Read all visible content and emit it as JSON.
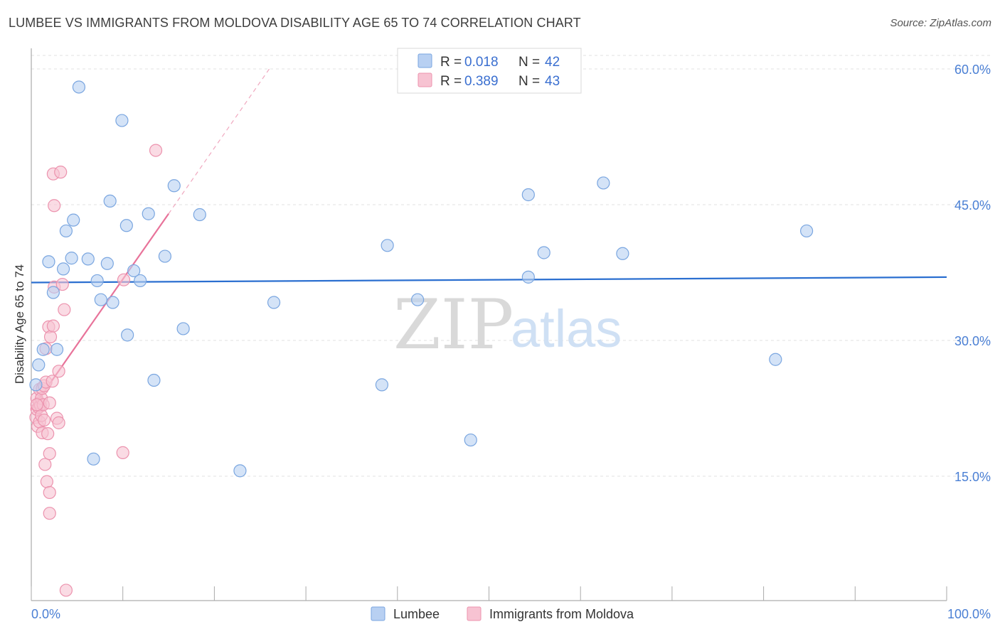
{
  "header": {
    "title": "LUMBEE VS IMMIGRANTS FROM MOLDOVA DISABILITY AGE 65 TO 74 CORRELATION CHART",
    "source": "Source: ZipAtlas.com"
  },
  "watermark": {
    "zip": "ZIP",
    "atlas": "atlas"
  },
  "legend_top": {
    "rows": [
      {
        "r_label": "R =",
        "r_value": "0.018",
        "n_label": "N =",
        "n_value": "42"
      },
      {
        "r_label": "R =",
        "r_value": "0.389",
        "n_label": "N =",
        "n_value": "43"
      }
    ]
  },
  "colors": {
    "lumbee_fill": "#b8d0f2",
    "lumbee_stroke": "#7aa6e0",
    "lumbee_line": "#2b6fd0",
    "moldova_fill": "#f7c3d2",
    "moldova_stroke": "#ec93ae",
    "moldova_line": "#e8739a",
    "tick_text": "#4a7fd4",
    "grid": "#e2e2e2"
  },
  "chart_data": {
    "type": "scatter",
    "title": "LUMBEE VS IMMIGRANTS FROM MOLDOVA DISABILITY AGE 65 TO 74 CORRELATION CHART",
    "xlabel": "",
    "ylabel": "Disability Age 65 to 74",
    "xlim": [
      0,
      100
    ],
    "ylim": [
      0,
      63
    ],
    "x_tick_labels": [
      "0.0%",
      "100.0%"
    ],
    "y_ticks": [
      15,
      30,
      45,
      60
    ],
    "y_tick_labels": [
      "15.0%",
      "30.0%",
      "45.0%",
      "60.0%"
    ],
    "grid": true,
    "legend_position": "top-center",
    "series": [
      {
        "name": "Lumbee",
        "r": 0.018,
        "n": 42,
        "trend": {
          "x": [
            0,
            100
          ],
          "y": [
            36.4,
            37.0
          ],
          "dashed_extension": false
        },
        "points": [
          [
            0.5,
            25.1
          ],
          [
            0.8,
            27.3
          ],
          [
            1.3,
            29.0
          ],
          [
            1.9,
            38.7
          ],
          [
            2.4,
            35.3
          ],
          [
            2.8,
            29.0
          ],
          [
            3.5,
            37.9
          ],
          [
            3.8,
            42.1
          ],
          [
            4.4,
            39.1
          ],
          [
            4.6,
            43.3
          ],
          [
            5.2,
            58.0
          ],
          [
            6.2,
            39.0
          ],
          [
            6.8,
            16.9
          ],
          [
            7.2,
            36.6
          ],
          [
            7.6,
            34.5
          ],
          [
            8.3,
            38.5
          ],
          [
            8.6,
            45.4
          ],
          [
            8.9,
            34.2
          ],
          [
            9.9,
            54.3
          ],
          [
            10.4,
            42.7
          ],
          [
            10.5,
            30.6
          ],
          [
            11.2,
            37.7
          ],
          [
            11.9,
            36.6
          ],
          [
            12.8,
            44.0
          ],
          [
            13.4,
            25.6
          ],
          [
            14.6,
            39.3
          ],
          [
            15.6,
            47.1
          ],
          [
            16.6,
            31.3
          ],
          [
            18.4,
            43.9
          ],
          [
            22.8,
            15.6
          ],
          [
            26.5,
            34.2
          ],
          [
            38.3,
            25.1
          ],
          [
            38.9,
            40.5
          ],
          [
            42.2,
            34.5
          ],
          [
            48.0,
            19.0
          ],
          [
            54.3,
            46.1
          ],
          [
            54.3,
            37.0
          ],
          [
            56.0,
            39.7
          ],
          [
            62.5,
            47.4
          ],
          [
            64.6,
            39.6
          ],
          [
            81.3,
            27.9
          ],
          [
            84.7,
            42.1
          ]
        ]
      },
      {
        "name": "Immigrants from Moldova",
        "r": 0.389,
        "n": 43,
        "trend": {
          "x": [
            0,
            15
          ],
          "y": [
            22.3,
            44.0
          ],
          "dashed_extension": {
            "x": [
              15,
              26
            ],
            "y": [
              44.0,
              60.0
            ]
          }
        },
        "points": [
          [
            0.5,
            21.5
          ],
          [
            0.6,
            23.6
          ],
          [
            0.6,
            22.4
          ],
          [
            0.7,
            20.5
          ],
          [
            0.8,
            22.6
          ],
          [
            0.9,
            23.1
          ],
          [
            0.9,
            21.0
          ],
          [
            0.9,
            24.6
          ],
          [
            1.0,
            22.8
          ],
          [
            1.1,
            23.6
          ],
          [
            1.1,
            21.7
          ],
          [
            1.2,
            19.8
          ],
          [
            1.2,
            24.7
          ],
          [
            1.3,
            22.9
          ],
          [
            1.4,
            21.2
          ],
          [
            1.4,
            25.0
          ],
          [
            1.5,
            16.3
          ],
          [
            1.6,
            29.1
          ],
          [
            1.6,
            25.4
          ],
          [
            1.7,
            14.4
          ],
          [
            1.8,
            19.7
          ],
          [
            1.9,
            31.5
          ],
          [
            2.0,
            23.1
          ],
          [
            2.0,
            13.2
          ],
          [
            2.0,
            17.5
          ],
          [
            2.0,
            10.9
          ],
          [
            2.1,
            30.4
          ],
          [
            2.3,
            25.5
          ],
          [
            2.4,
            31.6
          ],
          [
            2.4,
            48.4
          ],
          [
            2.5,
            35.9
          ],
          [
            2.5,
            44.9
          ],
          [
            2.8,
            21.4
          ],
          [
            3.0,
            26.6
          ],
          [
            3.0,
            20.9
          ],
          [
            3.2,
            48.6
          ],
          [
            3.4,
            36.2
          ],
          [
            3.6,
            33.4
          ],
          [
            3.8,
            2.4
          ],
          [
            10.1,
            36.7
          ],
          [
            10.0,
            17.6
          ],
          [
            13.6,
            51.0
          ],
          [
            0.6,
            22.9
          ]
        ]
      }
    ]
  },
  "legend_bottom": {
    "items": [
      {
        "label": "Lumbee"
      },
      {
        "label": "Immigrants from Moldova"
      }
    ]
  }
}
